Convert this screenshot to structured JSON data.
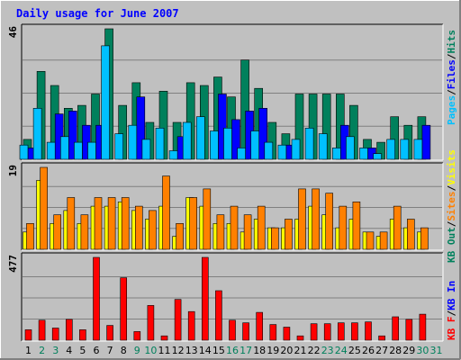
{
  "title": "Daily usage for June 2007",
  "colors": {
    "background": "#C0C0C0",
    "title": "#0000FF",
    "hits": "#00805C",
    "files": "#0000FF",
    "pages": "#00C0FF",
    "visits": "#FFFF00",
    "sites": "#FF8000",
    "kb_in": "#0000FF",
    "kb_out": "#00805C",
    "kb_f": "#FF0000",
    "weekday_label": "#000000",
    "weekend_label": "#00805C"
  },
  "chart_data": [
    {
      "type": "bar",
      "name": "hits-files-pages",
      "ymax_label": "46",
      "ylim": [
        0,
        46
      ],
      "legend": [
        "Pages",
        "Files",
        "Hits"
      ],
      "categories": [
        "1",
        "2",
        "3",
        "4",
        "5",
        "6",
        "7",
        "8",
        "9",
        "10",
        "11",
        "12",
        "13",
        "14",
        "15",
        "16",
        "17",
        "18",
        "19",
        "20",
        "21",
        "22",
        "23",
        "24",
        "25",
        "26",
        "27",
        "28",
        "29",
        "30",
        "31"
      ],
      "series": [
        {
          "name": "Hits",
          "values": [
            7,
            31,
            26,
            18,
            19,
            23,
            46,
            19,
            27,
            13,
            24,
            13,
            27,
            26,
            29,
            22,
            35,
            25,
            13,
            9,
            23,
            23,
            23,
            23,
            19,
            7,
            6,
            15,
            12,
            15,
            0
          ]
        },
        {
          "name": "Files",
          "values": [
            4,
            0,
            16,
            17,
            12,
            12,
            0,
            0,
            22,
            0,
            0,
            8,
            0,
            0,
            23,
            14,
            17,
            18,
            0,
            5,
            0,
            0,
            0,
            12,
            0,
            4,
            0,
            0,
            0,
            12,
            0
          ]
        },
        {
          "name": "Pages",
          "values": [
            5,
            18,
            6,
            8,
            6,
            6,
            40,
            9,
            12,
            7,
            11,
            3,
            13,
            15,
            10,
            11,
            4,
            10,
            6,
            5,
            7,
            11,
            9,
            4,
            8,
            4,
            2,
            7,
            7,
            7,
            0
          ]
        }
      ]
    },
    {
      "type": "bar",
      "name": "visits-sites",
      "ymax_label": "19",
      "ylim": [
        0,
        19
      ],
      "legend": [
        "Visits",
        "Sites"
      ],
      "categories": [
        "1",
        "2",
        "3",
        "4",
        "5",
        "6",
        "7",
        "8",
        "9",
        "10",
        "11",
        "12",
        "13",
        "14",
        "15",
        "16",
        "17",
        "18",
        "19",
        "20",
        "21",
        "22",
        "23",
        "24",
        "25",
        "26",
        "27",
        "28",
        "29",
        "30",
        "31"
      ],
      "series": [
        {
          "name": "Visits",
          "values": [
            4,
            16,
            6,
            9,
            6,
            10,
            10,
            11,
            9,
            7,
            10,
            3,
            12,
            10,
            6,
            6,
            4,
            7,
            5,
            5,
            7,
            10,
            8,
            5,
            7,
            4,
            3,
            7,
            5,
            4,
            0
          ]
        },
        {
          "name": "Sites",
          "values": [
            6,
            19,
            8,
            12,
            8,
            12,
            12,
            12,
            10,
            9,
            17,
            6,
            12,
            14,
            8,
            10,
            8,
            10,
            5,
            7,
            14,
            14,
            13,
            10,
            11,
            4,
            4,
            10,
            7,
            5,
            0
          ]
        }
      ]
    },
    {
      "type": "bar",
      "name": "kbytes",
      "ymax_label": "477",
      "ylim": [
        0,
        477
      ],
      "legend": [
        "KB F",
        "KB In",
        "KB Out"
      ],
      "categories": [
        "1",
        "2",
        "3",
        "4",
        "5",
        "6",
        "7",
        "8",
        "9",
        "10",
        "11",
        "12",
        "13",
        "14",
        "15",
        "16",
        "17",
        "18",
        "19",
        "20",
        "21",
        "22",
        "23",
        "24",
        "25",
        "26",
        "27",
        "28",
        "29",
        "30",
        "31"
      ],
      "series": [
        {
          "name": "KB F",
          "values": [
            60,
            115,
            70,
            120,
            60,
            477,
            85,
            360,
            50,
            200,
            25,
            235,
            165,
            477,
            285,
            115,
            100,
            160,
            90,
            75,
            25,
            95,
            95,
            100,
            100,
            105,
            25,
            135,
            120,
            150,
            0
          ]
        }
      ]
    }
  ],
  "weekend_days": [
    "2",
    "3",
    "9",
    "10",
    "16",
    "17",
    "23",
    "24",
    "30",
    "31"
  ]
}
